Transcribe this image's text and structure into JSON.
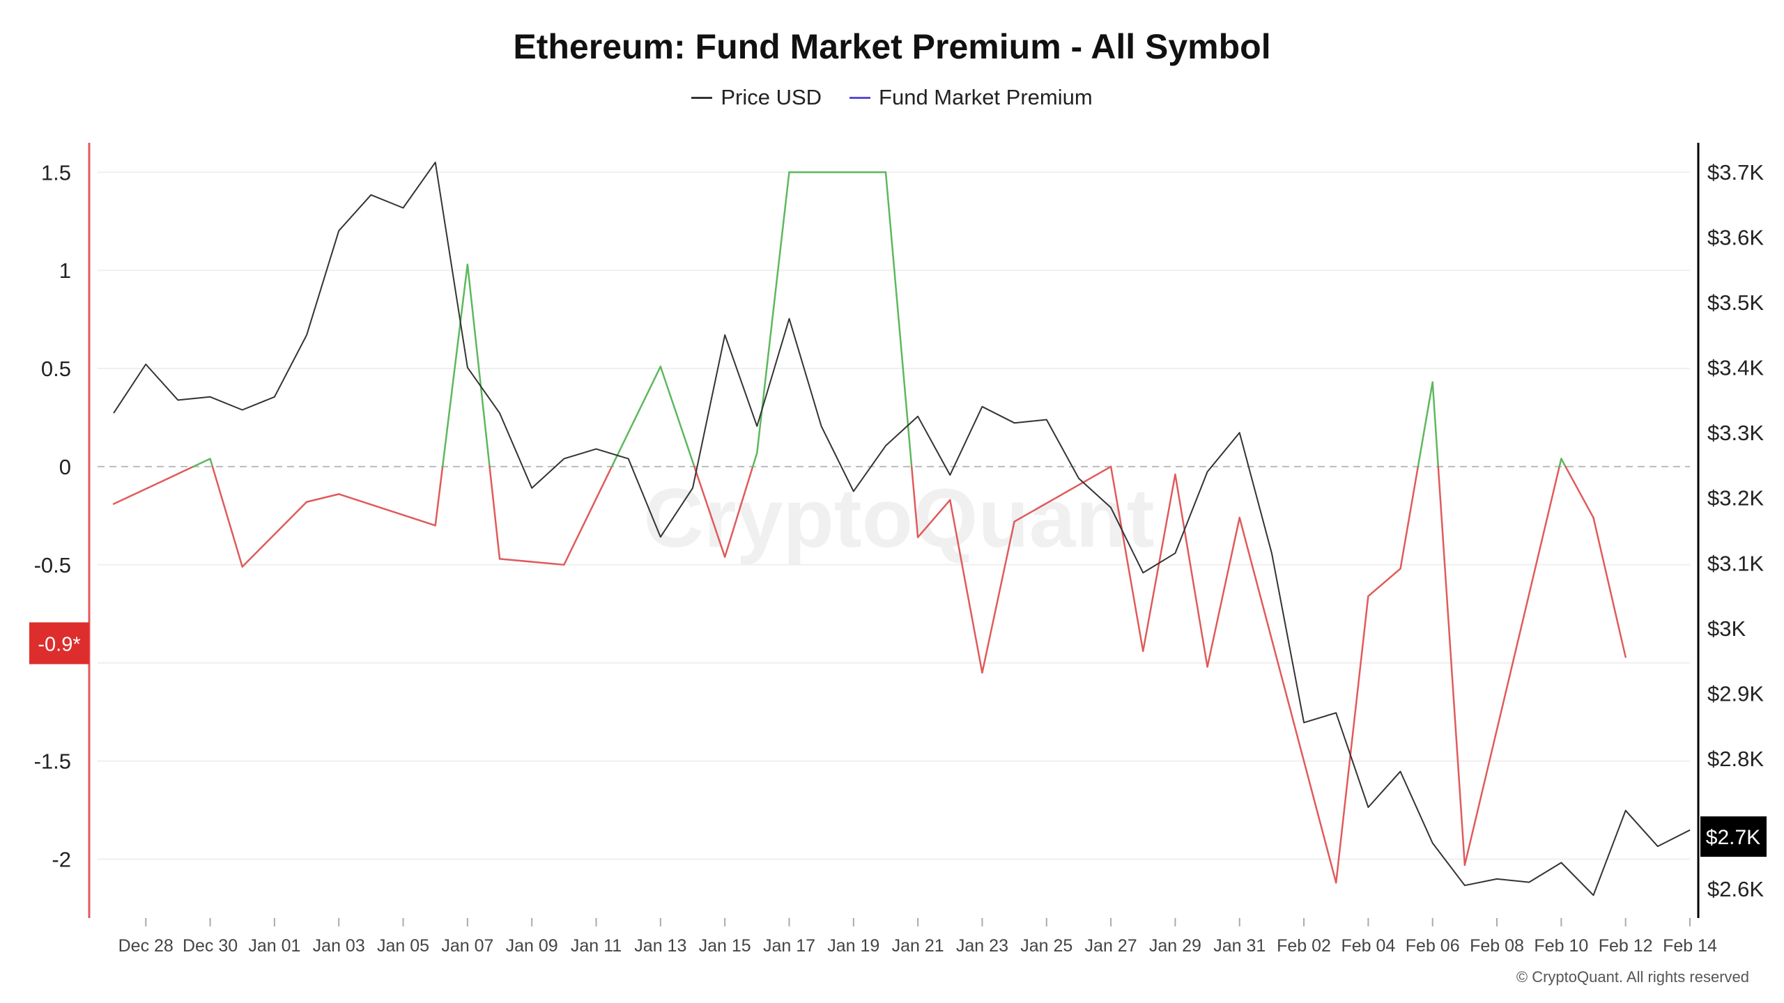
{
  "chart_data": {
    "type": "line",
    "title": "Ethereum: Fund Market Premium - All Symbol",
    "legend": [
      {
        "name": "Price USD",
        "color": "#333333"
      },
      {
        "name": "Fund Market Premium",
        "color": "#5b4bdb"
      }
    ],
    "legend_position": "top-center",
    "x_tick_labels": [
      "Dec 28",
      "Dec 30",
      "Jan 01",
      "Jan 03",
      "Jan 05",
      "Jan 07",
      "Jan 09",
      "Jan 11",
      "Jan 13",
      "Jan 15",
      "Jan 17",
      "Jan 19",
      "Jan 21",
      "Jan 23",
      "Jan 25",
      "Jan 27",
      "Jan 29",
      "Jan 31",
      "Feb 02",
      "Feb 04",
      "Feb 06",
      "Feb 08",
      "Feb 10",
      "Feb 12",
      "Feb 14"
    ],
    "x_range": [
      "2024-12-27",
      "2025-02-14"
    ],
    "left_axis": {
      "range": [
        -2.3,
        1.65
      ],
      "tick_values": [
        1.5,
        1,
        0.5,
        0,
        -0.5,
        -1.5,
        -2
      ],
      "tick_labels": [
        "1.5",
        "1",
        "0.5",
        "0",
        "-0.5",
        "-1.5",
        "-2"
      ],
      "current_value_label": "-0.9*",
      "current_value": -0.9
    },
    "right_axis": {
      "range": [
        2555,
        3745
      ],
      "tick_values": [
        3700,
        3600,
        3500,
        3400,
        3300,
        3200,
        3100,
        3000,
        2900,
        2800,
        2600
      ],
      "tick_labels": [
        "$3.7K",
        "$3.6K",
        "$3.5K",
        "$3.4K",
        "$3.3K",
        "$3.2K",
        "$3.1K",
        "$3K",
        "$2.9K",
        "$2.8K",
        "$2.6K"
      ],
      "current_value_label": "$2.7K",
      "current_value": 2680
    },
    "zero_line": "dashed",
    "grid": "horizontal",
    "series": [
      {
        "name": "Price USD",
        "axis": "right",
        "color": "#333333",
        "x": [
          "2024-12-27",
          "2024-12-28",
          "2024-12-29",
          "2024-12-30",
          "2024-12-31",
          "2025-01-01",
          "2025-01-02",
          "2025-01-03",
          "2025-01-04",
          "2025-01-05",
          "2025-01-06",
          "2025-01-07",
          "2025-01-08",
          "2025-01-09",
          "2025-01-10",
          "2025-01-11",
          "2025-01-12",
          "2025-01-13",
          "2025-01-14",
          "2025-01-15",
          "2025-01-16",
          "2025-01-17",
          "2025-01-18",
          "2025-01-19",
          "2025-01-20",
          "2025-01-21",
          "2025-01-22",
          "2025-01-23",
          "2025-01-24",
          "2025-01-25",
          "2025-01-26",
          "2025-01-27",
          "2025-01-28",
          "2025-01-29",
          "2025-01-30",
          "2025-01-31",
          "2025-02-01",
          "2025-02-02",
          "2025-02-03",
          "2025-02-04",
          "2025-02-05",
          "2025-02-06",
          "2025-02-07",
          "2025-02-08",
          "2025-02-09",
          "2025-02-10",
          "2025-02-11",
          "2025-02-12",
          "2025-02-13",
          "2025-02-14"
        ],
        "values": [
          3330,
          3405,
          3350,
          3355,
          3335,
          3355,
          3450,
          3610,
          3665,
          3645,
          3715,
          3400,
          3330,
          3215,
          3260,
          3275,
          3260,
          3140,
          3215,
          3450,
          3310,
          3475,
          3310,
          3210,
          3280,
          3325,
          3235,
          3340,
          3315,
          3320,
          3230,
          3185,
          3085,
          3115,
          3240,
          3300,
          3115,
          2855,
          2870,
          2725,
          2780,
          2670,
          2605,
          2615,
          2610,
          2640,
          2590,
          2720,
          2665,
          2690
        ]
      },
      {
        "name": "Fund Market Premium",
        "axis": "left",
        "color_positive": "#5cb85c",
        "color_negative": "#e05a5a",
        "x": [
          "2024-12-27",
          "2024-12-30",
          "2024-12-31",
          "2025-01-02",
          "2025-01-03",
          "2025-01-06",
          "2025-01-07",
          "2025-01-08",
          "2025-01-10",
          "2025-01-13",
          "2025-01-15",
          "2025-01-16",
          "2025-01-17",
          "2025-01-20",
          "2025-01-21",
          "2025-01-22",
          "2025-01-23",
          "2025-01-24",
          "2025-01-27",
          "2025-01-28",
          "2025-01-29",
          "2025-01-30",
          "2025-01-31",
          "2025-02-03",
          "2025-02-04",
          "2025-02-05",
          "2025-02-06",
          "2025-02-07",
          "2025-02-10",
          "2025-02-11",
          "2025-02-12"
        ],
        "values": [
          -0.19,
          0.04,
          -0.51,
          -0.18,
          -0.14,
          -0.3,
          1.03,
          -0.47,
          -0.5,
          0.51,
          -0.46,
          0.07,
          1.5,
          1.5,
          -0.36,
          -0.17,
          -1.05,
          -0.28,
          0.0,
          -0.94,
          -0.04,
          -1.02,
          -0.26,
          -2.12,
          -0.66,
          -0.52,
          0.43,
          -2.03,
          0.04,
          -0.26,
          -0.97
        ]
      }
    ]
  },
  "copyright": "© CryptoQuant. All rights reserved",
  "watermark": "CryptoQuant"
}
